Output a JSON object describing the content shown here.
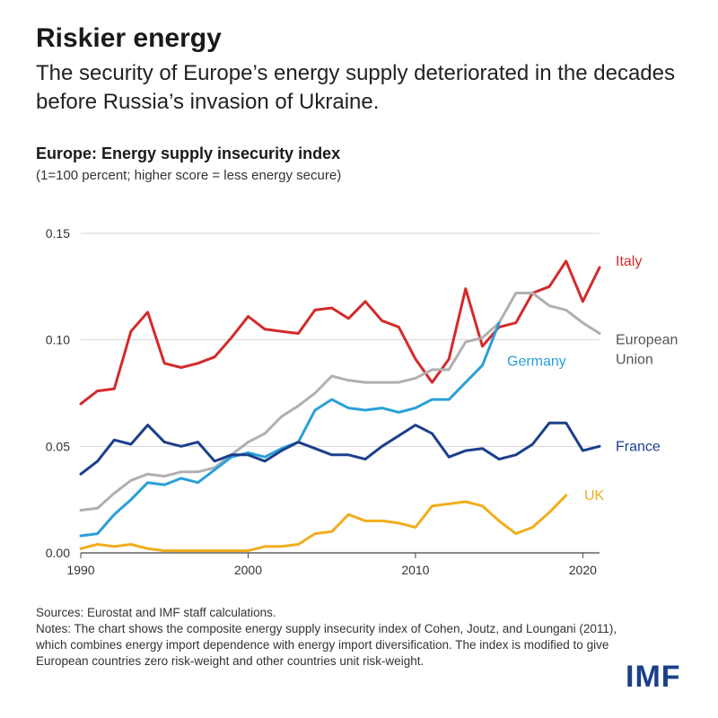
{
  "header": {
    "title": "Riskier energy",
    "subtitle": "The security of Europe’s energy supply deteriorated in the decades before Russia’s invasion of Ukraine."
  },
  "chart_data": {
    "type": "line",
    "title": "Europe: Energy supply insecurity index",
    "subtitle": "(1=100 percent; higher score = less energy secure)",
    "xlabel": "",
    "ylabel": "",
    "xlim": [
      1990,
      2021
    ],
    "ylim": [
      0,
      0.15
    ],
    "x_ticks": [
      1990,
      2000,
      2010,
      2020
    ],
    "y_ticks": [
      0,
      0.05,
      0.1,
      0.15
    ],
    "y_tick_labels": [
      "0.00",
      "0.05",
      "0.10",
      "0.15"
    ],
    "grid": "horizontal",
    "legend": "direct labels at line ends",
    "x": [
      1990,
      1991,
      1992,
      1993,
      1994,
      1995,
      1996,
      1997,
      1998,
      1999,
      2000,
      2001,
      2002,
      2003,
      2004,
      2005,
      2006,
      2007,
      2008,
      2009,
      2010,
      2011,
      2012,
      2013,
      2014,
      2015,
      2016,
      2017,
      2018,
      2019,
      2020,
      2021
    ],
    "series": [
      {
        "name": "Italy",
        "label_lines": [
          "Italy"
        ],
        "color": "#d42a2a",
        "values": [
          0.07,
          0.076,
          0.077,
          0.104,
          0.113,
          0.089,
          0.087,
          0.089,
          0.092,
          0.101,
          0.111,
          0.105,
          0.104,
          0.103,
          0.114,
          0.115,
          0.11,
          0.118,
          0.109,
          0.106,
          0.091,
          0.08,
          0.091,
          0.124,
          0.097,
          0.106,
          0.108,
          0.122,
          0.125,
          0.137,
          0.118,
          0.134
        ]
      },
      {
        "name": "European Union",
        "label_lines": [
          "European",
          "Union"
        ],
        "color": "#b0b0b0",
        "values": [
          0.02,
          0.021,
          0.028,
          0.034,
          0.037,
          0.036,
          0.038,
          0.038,
          0.04,
          0.046,
          0.052,
          0.056,
          0.064,
          0.069,
          0.075,
          0.083,
          0.081,
          0.08,
          0.08,
          0.08,
          0.082,
          0.086,
          0.086,
          0.099,
          0.101,
          0.108,
          0.122,
          0.122,
          0.116,
          0.114,
          0.108,
          0.103
        ]
      },
      {
        "name": "Germany",
        "label_lines": [
          "Germany"
        ],
        "color": "#2aa0d8",
        "values": [
          0.008,
          0.009,
          0.018,
          0.025,
          0.033,
          0.032,
          0.035,
          0.033,
          0.039,
          0.045,
          0.047,
          0.045,
          0.049,
          0.052,
          0.067,
          0.072,
          0.068,
          0.067,
          0.068,
          0.066,
          0.068,
          0.072,
          0.072,
          0.08,
          0.088,
          0.108,
          null,
          null,
          null,
          null,
          null,
          null
        ]
      },
      {
        "name": "France",
        "label_lines": [
          "France"
        ],
        "color": "#1b3f8b",
        "values": [
          0.037,
          0.043,
          0.053,
          0.051,
          0.06,
          0.052,
          0.05,
          0.052,
          0.043,
          0.046,
          0.046,
          0.043,
          0.048,
          0.052,
          0.049,
          0.046,
          0.046,
          0.044,
          0.05,
          0.055,
          0.06,
          0.056,
          0.045,
          0.048,
          0.049,
          0.044,
          0.046,
          0.051,
          0.061,
          0.061,
          0.048,
          0.05
        ]
      },
      {
        "name": "UK",
        "label_lines": [
          "UK"
        ],
        "color": "#f0ad1e",
        "values": [
          0.002,
          0.004,
          0.003,
          0.004,
          0.002,
          0.001,
          0.001,
          0.001,
          0.001,
          0.001,
          0.001,
          0.003,
          0.003,
          0.004,
          0.009,
          0.01,
          0.018,
          0.015,
          0.015,
          0.014,
          0.012,
          0.022,
          0.023,
          0.024,
          0.022,
          0.015,
          0.009,
          0.012,
          0.019,
          0.027,
          null,
          null
        ]
      }
    ]
  },
  "footer": {
    "sources": "Sources: Eurostat and IMF staff calculations.",
    "notes": "Notes: The chart shows the composite energy supply insecurity index of Cohen, Joutz, and Loungani (2011), which combines energy import dependence with energy import diversification. The index is modified to give European countries zero risk-weight and other countries unit risk-weight.",
    "logo": "IMF"
  }
}
